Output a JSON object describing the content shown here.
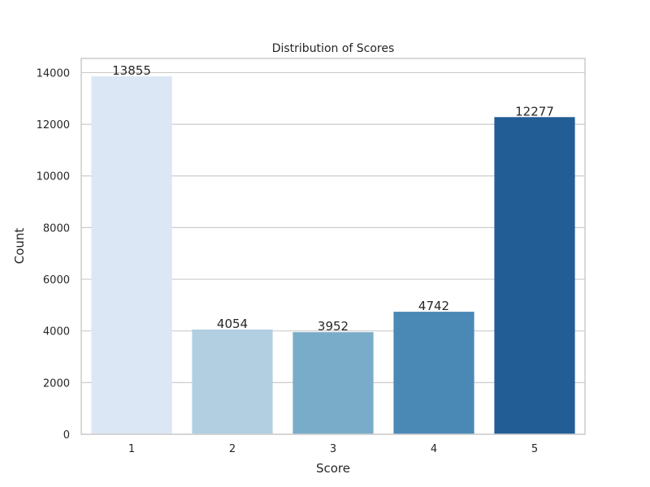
{
  "chart_data": {
    "type": "bar",
    "title": "Distribution of Scores",
    "xlabel": "Score",
    "ylabel": "Count",
    "categories": [
      "1",
      "2",
      "3",
      "4",
      "5"
    ],
    "values": [
      13855,
      4054,
      3952,
      4742,
      12277
    ],
    "data_labels": [
      "13855",
      "4054",
      "3952",
      "4742",
      "12277"
    ],
    "colors": [
      "#dbe7f4",
      "#b2cfe2",
      "#79acc9",
      "#4a89b6",
      "#225d95"
    ],
    "ylim": [
      0,
      14548
    ],
    "yticks": [
      0,
      2000,
      4000,
      6000,
      8000,
      10000,
      12000,
      14000
    ],
    "ytick_labels": [
      "0",
      "2000",
      "4000",
      "6000",
      "8000",
      "10000",
      "12000",
      "14000"
    ],
    "grid": true,
    "legend": false
  }
}
